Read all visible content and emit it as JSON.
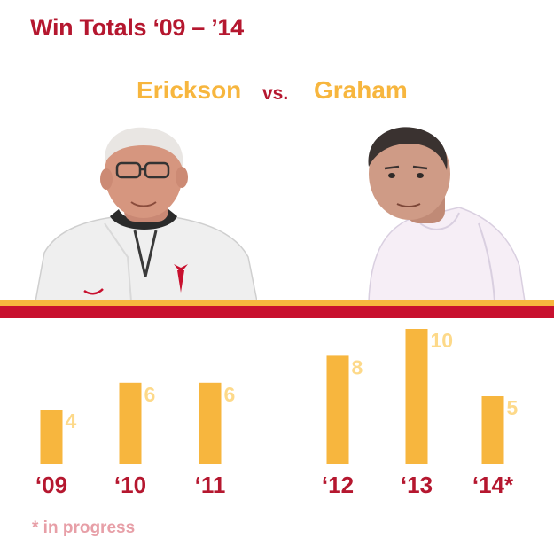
{
  "title": "Win Totals ‘09 – ’14",
  "header": {
    "coach_left": "Erickson",
    "vs": "vs.",
    "coach_right": "Graham"
  },
  "footnote": "* in progress",
  "colors": {
    "bar": "#f7b63e",
    "accent_red": "#c8102e",
    "title_red": "#b5172f",
    "value_label": "#fdd989"
  },
  "chart_data": {
    "type": "bar",
    "title": "Win Totals ‘09 – ’14",
    "categories": [
      "‘09",
      "‘10",
      "‘11",
      "‘12",
      "‘13",
      "‘14*"
    ],
    "values": [
      4,
      6,
      6,
      8,
      10,
      5
    ],
    "value_labels": [
      "4",
      "6",
      "6",
      "8",
      "10",
      "5"
    ],
    "groups": [
      {
        "name": "Erickson",
        "categories": [
          "‘09",
          "‘10",
          "‘11"
        ]
      },
      {
        "name": "Graham",
        "categories": [
          "‘12",
          "‘13",
          "‘14*"
        ]
      }
    ],
    "xlabel": "",
    "ylabel": "",
    "ylim": [
      0,
      10
    ],
    "grid": false,
    "legend": "none"
  }
}
